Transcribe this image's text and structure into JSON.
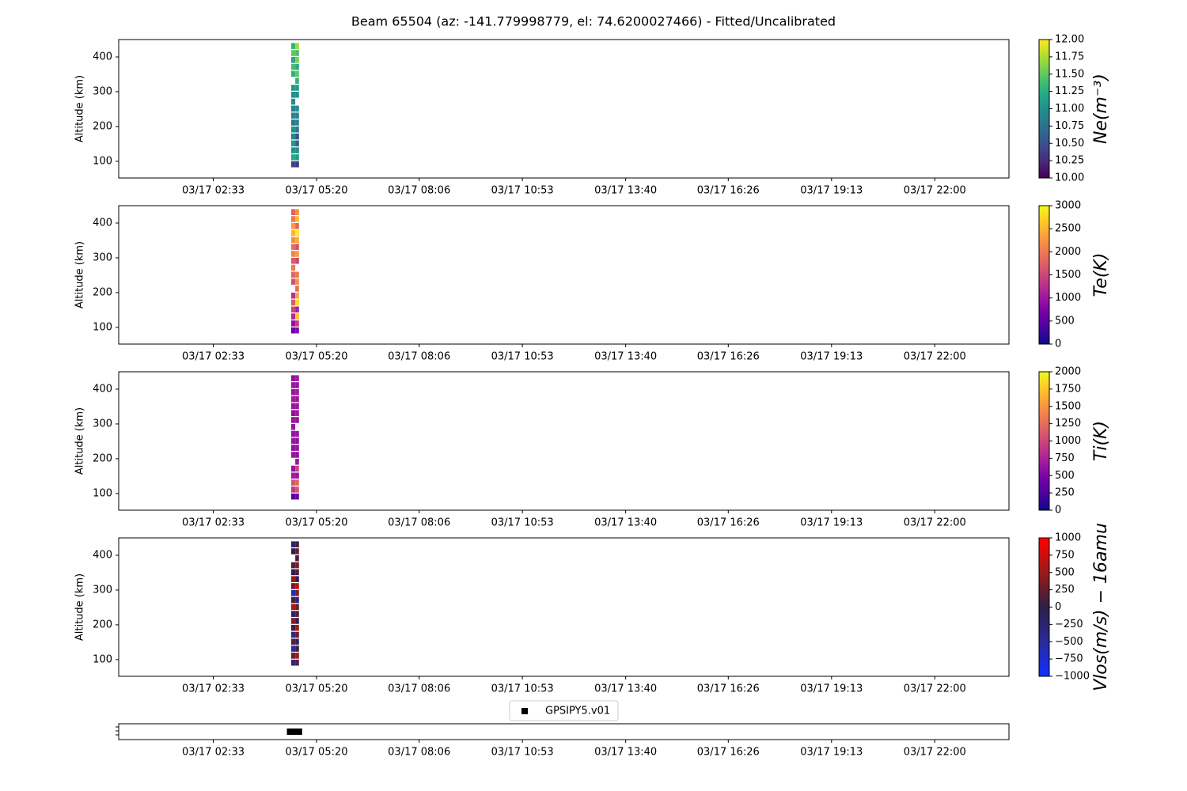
{
  "chart_data": [
    {
      "type": "heatmap",
      "title": "Beam 65504 (az: -141.779998779, el: 74.6200027466) - Fitted/Uncalibrated",
      "ylabel": "Altitude (km)",
      "xlim": [
        0,
        24
      ],
      "ylim": [
        52,
        450
      ],
      "yticks": [
        100,
        200,
        300,
        400
      ],
      "xticks": [
        {
          "value": 2.55,
          "label": "03/17 02:33"
        },
        {
          "value": 5.333,
          "label": "03/17 05:20"
        },
        {
          "value": 8.1,
          "label": "03/17 08:06"
        },
        {
          "value": 10.883,
          "label": "03/17 10:53"
        },
        {
          "value": 13.667,
          "label": "03/17 13:40"
        },
        {
          "value": 16.433,
          "label": "03/17 16:26"
        },
        {
          "value": 19.217,
          "label": "03/17 19:13"
        },
        {
          "value": 22,
          "label": "03/17 22:00"
        }
      ],
      "x": [
        4.65,
        4.76,
        4.86
      ],
      "y": [
        90,
        110,
        130,
        150,
        170,
        190,
        210,
        230,
        250,
        270,
        290,
        310,
        330,
        350,
        370,
        390,
        410,
        430
      ],
      "values": [
        [
          10.4,
          10.3
        ],
        [
          11.2,
          11.1
        ],
        [
          11.0,
          11.0
        ],
        [
          11.1,
          10.6
        ],
        [
          10.9,
          10.5
        ],
        [
          11.0,
          10.8
        ],
        [
          10.8,
          10.9
        ],
        [
          10.9,
          10.9
        ],
        [
          10.9,
          11.0
        ],
        [
          11.0,
          null
        ],
        [
          11.0,
          11.0
        ],
        [
          11.1,
          11.1
        ],
        [
          null,
          11.3
        ],
        [
          11.3,
          11.5
        ],
        [
          11.4,
          11.2
        ],
        [
          11.2,
          11.6
        ],
        [
          11.5,
          11.4
        ],
        [
          11.3,
          11.7
        ]
      ],
      "colorbar": {
        "label": "Ne(m⁻³)",
        "cmap": "viridis",
        "lim": [
          10,
          12
        ],
        "ticks": [
          {
            "value": 10,
            "label": "10.00"
          },
          {
            "value": 10.25,
            "label": "10.25"
          },
          {
            "value": 10.5,
            "label": "10.50"
          },
          {
            "value": 10.75,
            "label": "10.75"
          },
          {
            "value": 11,
            "label": "11.00"
          },
          {
            "value": 11.25,
            "label": "11.25"
          },
          {
            "value": 11.5,
            "label": "11.50"
          },
          {
            "value": 11.75,
            "label": "11.75"
          },
          {
            "value": 12,
            "label": "12.00"
          }
        ]
      }
    },
    {
      "type": "heatmap",
      "ylabel": "Altitude (km)",
      "xlim": [
        0,
        24
      ],
      "ylim": [
        52,
        450
      ],
      "yticks": [
        100,
        200,
        300,
        400
      ],
      "xticks": [
        {
          "value": 2.55,
          "label": "03/17 02:33"
        },
        {
          "value": 5.333,
          "label": "03/17 05:20"
        },
        {
          "value": 8.1,
          "label": "03/17 08:06"
        },
        {
          "value": 10.883,
          "label": "03/17 10:53"
        },
        {
          "value": 13.667,
          "label": "03/17 13:40"
        },
        {
          "value": 16.433,
          "label": "03/17 16:26"
        },
        {
          "value": 19.217,
          "label": "03/17 19:13"
        },
        {
          "value": 22,
          "label": "03/17 22:00"
        }
      ],
      "x": [
        4.65,
        4.76,
        4.86
      ],
      "y": [
        90,
        110,
        130,
        150,
        170,
        190,
        210,
        230,
        250,
        270,
        290,
        310,
        330,
        350,
        370,
        390,
        410,
        430
      ],
      "values": [
        [
          600,
          800
        ],
        [
          900,
          1400
        ],
        [
          1200,
          2600
        ],
        [
          1500,
          1100
        ],
        [
          1700,
          2800
        ],
        [
          1300,
          2400
        ],
        [
          null,
          1900
        ],
        [
          1600,
          2200
        ],
        [
          1800,
          2000
        ],
        [
          2000,
          null
        ],
        [
          1700,
          1500
        ],
        [
          2100,
          2300
        ],
        [
          1900,
          1600
        ],
        [
          2200,
          2400
        ],
        [
          2500,
          2900
        ],
        [
          2300,
          1800
        ],
        [
          2000,
          2600
        ],
        [
          1800,
          2200
        ]
      ],
      "colorbar": {
        "label": "Te(K)",
        "cmap": "plasma",
        "lim": [
          0,
          3000
        ],
        "ticks": [
          0,
          500,
          1000,
          1500,
          2000,
          2500,
          3000
        ]
      }
    },
    {
      "type": "heatmap",
      "ylabel": "Altitude (km)",
      "xlim": [
        0,
        24
      ],
      "ylim": [
        52,
        450
      ],
      "yticks": [
        100,
        200,
        300,
        400
      ],
      "xticks": [
        {
          "value": 2.55,
          "label": "03/17 02:33"
        },
        {
          "value": 5.333,
          "label": "03/17 05:20"
        },
        {
          "value": 8.1,
          "label": "03/17 08:06"
        },
        {
          "value": 10.883,
          "label": "03/17 10:53"
        },
        {
          "value": 13.667,
          "label": "03/17 13:40"
        },
        {
          "value": 16.433,
          "label": "03/17 16:26"
        },
        {
          "value": 19.217,
          "label": "03/17 19:13"
        },
        {
          "value": 22,
          "label": "03/17 22:00"
        }
      ],
      "x": [
        4.65,
        4.76,
        4.86
      ],
      "y": [
        90,
        110,
        130,
        150,
        170,
        190,
        210,
        230,
        250,
        270,
        290,
        310,
        330,
        350,
        370,
        390,
        410,
        430
      ],
      "values": [
        [
          300,
          400
        ],
        [
          900,
          1100
        ],
        [
          1100,
          1200
        ],
        [
          700,
          650
        ],
        [
          650,
          1000
        ],
        [
          null,
          650
        ],
        [
          650,
          600
        ],
        [
          600,
          650
        ],
        [
          650,
          600
        ],
        [
          600,
          650
        ],
        [
          650,
          null
        ],
        [
          650,
          650
        ],
        [
          600,
          700
        ],
        [
          650,
          650
        ],
        [
          700,
          650
        ],
        [
          650,
          700
        ],
        [
          650,
          650
        ],
        [
          600,
          700
        ]
      ],
      "colorbar": {
        "label": "Ti(K)",
        "cmap": "plasma",
        "lim": [
          0,
          2000
        ],
        "ticks": [
          0,
          250,
          500,
          750,
          1000,
          1250,
          1500,
          1750,
          2000
        ]
      }
    },
    {
      "type": "heatmap",
      "ylabel": "Altitude (km)",
      "xlim": [
        0,
        24
      ],
      "ylim": [
        52,
        450
      ],
      "yticks": [
        100,
        200,
        300,
        400
      ],
      "xticks": [
        {
          "value": 2.55,
          "label": "03/17 02:33"
        },
        {
          "value": 5.333,
          "label": "03/17 05:20"
        },
        {
          "value": 8.1,
          "label": "03/17 08:06"
        },
        {
          "value": 10.883,
          "label": "03/17 10:53"
        },
        {
          "value": 13.667,
          "label": "03/17 13:40"
        },
        {
          "value": 16.433,
          "label": "03/17 16:26"
        },
        {
          "value": 19.217,
          "label": "03/17 19:13"
        },
        {
          "value": 22,
          "label": "03/17 22:00"
        }
      ],
      "x": [
        4.65,
        4.76,
        4.86
      ],
      "y": [
        90,
        110,
        130,
        150,
        170,
        190,
        210,
        230,
        250,
        270,
        290,
        310,
        330,
        350,
        370,
        390,
        410,
        430
      ],
      "values": [
        [
          -300,
          200
        ],
        [
          300,
          500
        ],
        [
          -500,
          100
        ],
        [
          200,
          -200
        ],
        [
          -400,
          300
        ],
        [
          100,
          600
        ],
        [
          400,
          -100
        ],
        [
          -200,
          200
        ],
        [
          600,
          300
        ],
        [
          100,
          -300
        ],
        [
          -600,
          400
        ],
        [
          300,
          700
        ],
        [
          500,
          -100
        ],
        [
          -100,
          200
        ],
        [
          200,
          400
        ],
        [
          null,
          100
        ],
        [
          0,
          300
        ],
        [
          -200,
          100
        ]
      ],
      "colorbar": {
        "label": "Vlos(m/s) − 16amu",
        "cmap": "bwr",
        "lim": [
          -1000,
          1000
        ],
        "ticks": [
          {
            "value": -1000,
            "label": "−1000"
          },
          {
            "value": -750,
            "label": "−750"
          },
          {
            "value": -500,
            "label": "−500"
          },
          {
            "value": -250,
            "label": "−250"
          },
          0,
          250,
          500,
          750,
          1000
        ]
      }
    },
    {
      "type": "scatter",
      "xlim": [
        0,
        24
      ],
      "xticks": [
        {
          "value": 2.55,
          "label": "03/17 02:33"
        },
        {
          "value": 5.333,
          "label": "03/17 05:20"
        },
        {
          "value": 8.1,
          "label": "03/17 08:06"
        },
        {
          "value": 10.883,
          "label": "03/17 10:53"
        },
        {
          "value": 13.667,
          "label": "03/17 13:40"
        },
        {
          "value": 16.433,
          "label": "03/17 16:26"
        },
        {
          "value": 19.217,
          "label": "03/17 19:13"
        },
        {
          "value": 22,
          "label": "03/17 22:00"
        }
      ],
      "series": [
        {
          "name": "GPSIPY5.v01",
          "color": "#000000",
          "x": [
            4.62,
            4.68,
            4.74,
            4.8,
            4.86
          ]
        }
      ]
    }
  ]
}
